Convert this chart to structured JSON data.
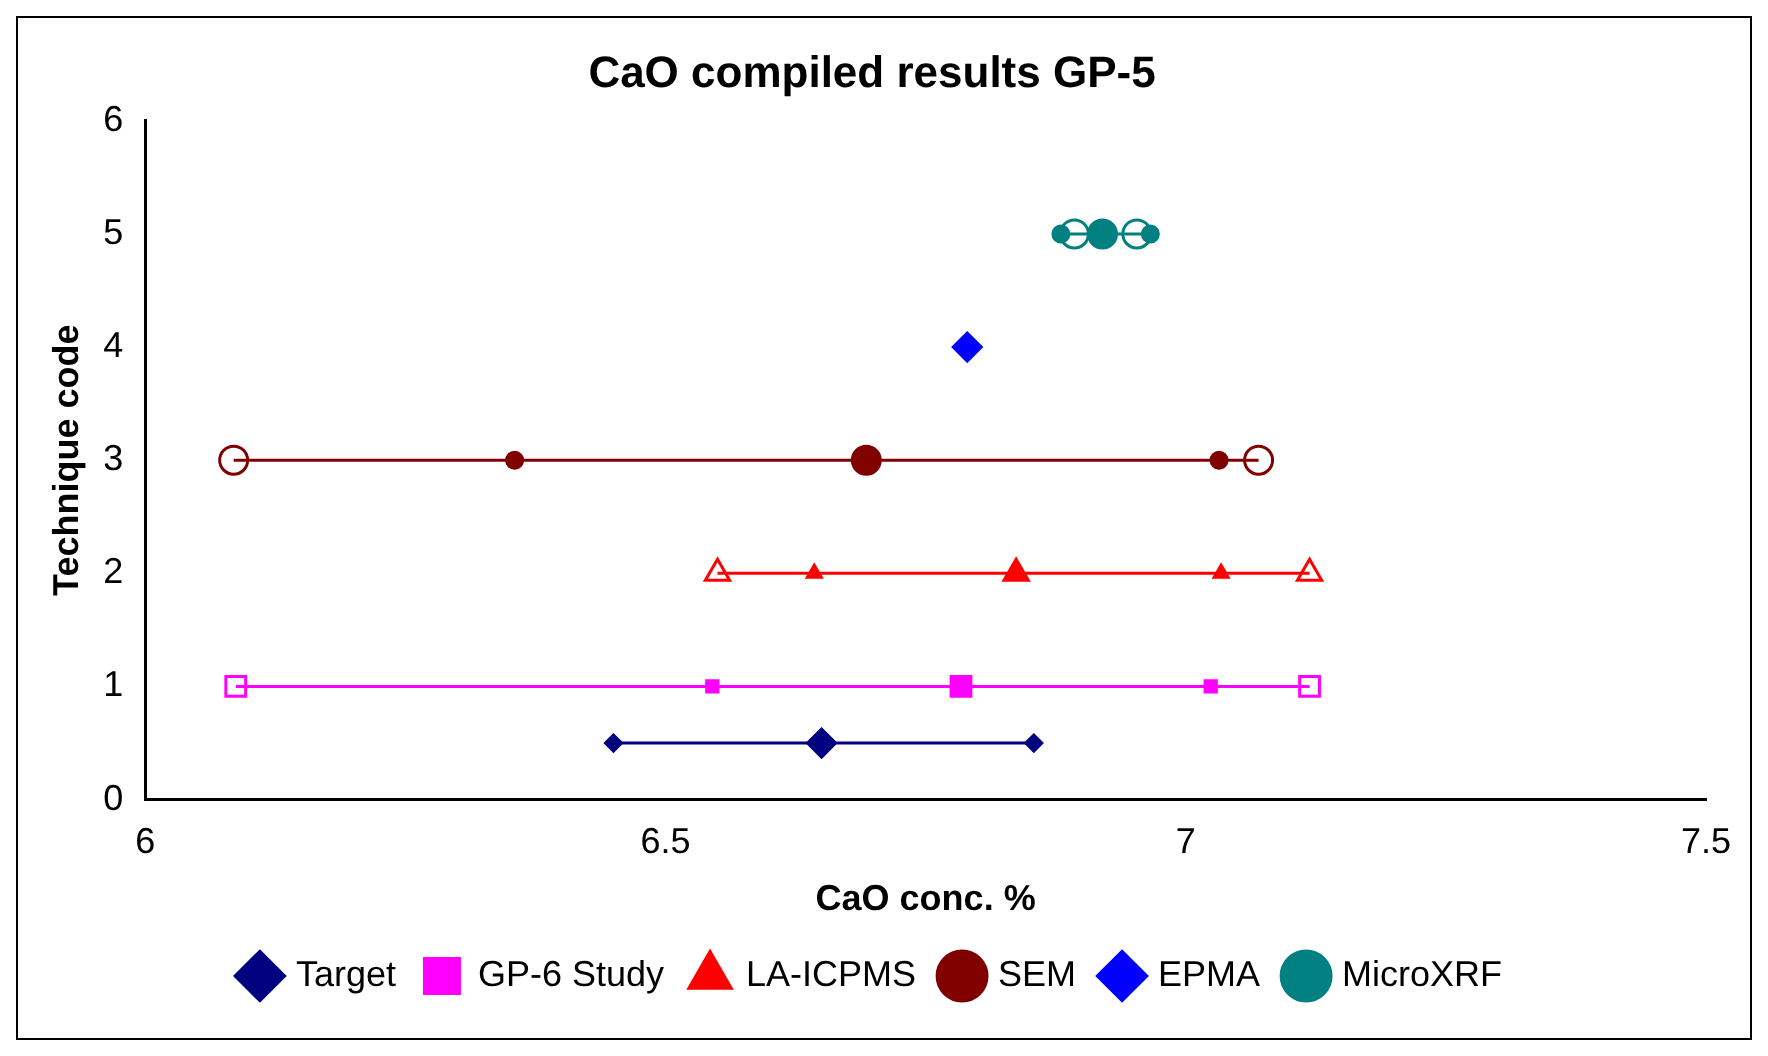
{
  "chart_data": {
    "type": "line",
    "title": "CaO compiled results GP-5",
    "xlabel": "CaO conc. %",
    "ylabel": "Technique code",
    "xlim": [
      6,
      7.5
    ],
    "xticks": [
      6,
      6.5,
      7,
      7.5
    ],
    "ylim": [
      0,
      6
    ],
    "yticks": [
      0,
      1,
      2,
      3,
      4,
      5,
      6
    ],
    "grid": false,
    "legend": "bottom",
    "line_style": "solid",
    "series": [
      {
        "name": "Target",
        "color": "#000080",
        "marker": "diamond",
        "x": [
          6.45,
          6.65,
          6.854
        ],
        "values": [
          0.5,
          0.5,
          0.5
        ]
      },
      {
        "name": "GP-6 Study",
        "color": "#ff00ff",
        "marker": "square",
        "x": [
          6.087,
          6.545,
          6.784,
          7.024,
          7.119
        ],
        "values": [
          1,
          1,
          1,
          1,
          1
        ]
      },
      {
        "name": "LA-ICPMS",
        "color": "#ff0000",
        "marker": "triangle",
        "x": [
          6.55,
          6.643,
          6.837,
          7.034,
          7.119
        ],
        "values": [
          2,
          2,
          2,
          2,
          2
        ]
      },
      {
        "name": "SEM",
        "color": "#800000",
        "marker": "circle",
        "x": [
          6.085,
          6.355,
          6.693,
          7.032,
          7.07
        ],
        "values": [
          3,
          3,
          3,
          3,
          3
        ]
      },
      {
        "name": "EPMA",
        "color": "#0000ff",
        "marker": "diamond",
        "x": [
          6.79
        ],
        "values": [
          4
        ]
      },
      {
        "name": "MicroXRF",
        "color": "#008080",
        "marker": "circle",
        "x": [
          6.893,
          6.88,
          6.92,
          6.966,
          6.953
        ],
        "values": [
          5,
          5,
          5,
          5,
          5
        ]
      }
    ]
  }
}
